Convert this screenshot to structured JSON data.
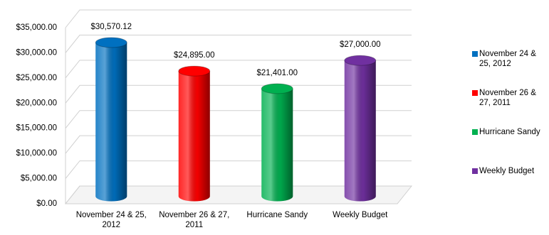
{
  "chart_data": {
    "type": "bar3d",
    "categories": [
      "November 24 & 25, 2012",
      "November 26 & 27, 2011",
      "Hurricane Sandy",
      "Weekly Budget"
    ],
    "values": [
      30570.12,
      24895,
      21401,
      27000
    ],
    "value_labels": [
      "$30,570.12",
      "$24,895.00",
      "$21,401.00",
      "$27,000.00"
    ],
    "colors": [
      "#0070c0",
      "#ff0000",
      "#00b050",
      "#7030a0"
    ],
    "ylim": [
      0,
      35000
    ],
    "yticks": [
      {
        "value": 0,
        "label": "$0.00"
      },
      {
        "value": 5000,
        "label": "$5,000.00"
      },
      {
        "value": 10000,
        "label": "$10,000.00"
      },
      {
        "value": 15000,
        "label": "$15,000.00"
      },
      {
        "value": 20000,
        "label": "$20,000.00"
      },
      {
        "value": 25000,
        "label": "$25,000.00"
      },
      {
        "value": 30000,
        "label": "$30,000.00"
      },
      {
        "value": 35000,
        "label": "$35,000.00"
      }
    ],
    "grid": true,
    "legend": "right"
  }
}
